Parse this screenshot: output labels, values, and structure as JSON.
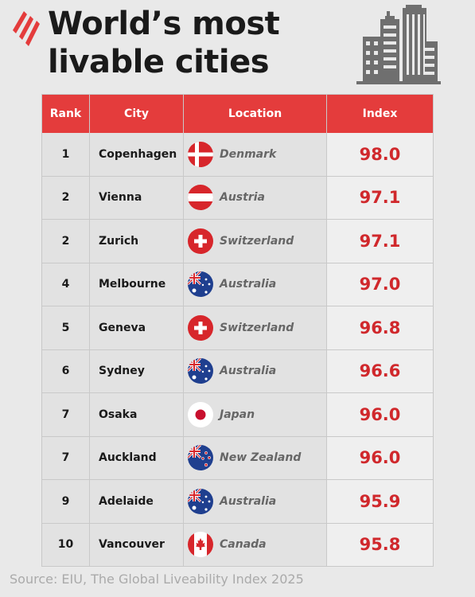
{
  "title_line1": "World’s most",
  "title_line2": "livable cities",
  "source": "Source: EIU, The Global Liveability Index 2025",
  "colors": {
    "accent": "#e43c3c",
    "value": "#d0282c"
  },
  "headers": {
    "rank": "Rank",
    "city": "City",
    "location": "Location",
    "index": "Index"
  },
  "chart_data": {
    "type": "table",
    "title": "World’s most livable cities",
    "columns": [
      "Rank",
      "City",
      "Location",
      "Index"
    ],
    "rows": [
      {
        "rank": "1",
        "city": "Copenhagen",
        "location": "Denmark",
        "flag": "denmark-flag-icon",
        "index": "98.0"
      },
      {
        "rank": "2",
        "city": "Vienna",
        "location": "Austria",
        "flag": "austria-flag-icon",
        "index": "97.1"
      },
      {
        "rank": "2",
        "city": "Zurich",
        "location": "Switzerland",
        "flag": "switzerland-flag-icon",
        "index": "97.1"
      },
      {
        "rank": "4",
        "city": "Melbourne",
        "location": "Australia",
        "flag": "australia-flag-icon",
        "index": "97.0"
      },
      {
        "rank": "5",
        "city": "Geneva",
        "location": "Switzerland",
        "flag": "switzerland-flag-icon",
        "index": "96.8"
      },
      {
        "rank": "6",
        "city": "Sydney",
        "location": "Australia",
        "flag": "australia-flag-icon",
        "index": "96.6"
      },
      {
        "rank": "7",
        "city": "Osaka",
        "location": "Japan",
        "flag": "japan-flag-icon",
        "index": "96.0"
      },
      {
        "rank": "7",
        "city": "Auckland",
        "location": "New Zealand",
        "flag": "new-zealand-flag-icon",
        "index": "96.0"
      },
      {
        "rank": "9",
        "city": "Adelaide",
        "location": "Australia",
        "flag": "australia-flag-icon",
        "index": "95.9"
      },
      {
        "rank": "10",
        "city": "Vancouver",
        "location": "Canada",
        "flag": "canada-flag-icon",
        "index": "95.8"
      }
    ]
  }
}
